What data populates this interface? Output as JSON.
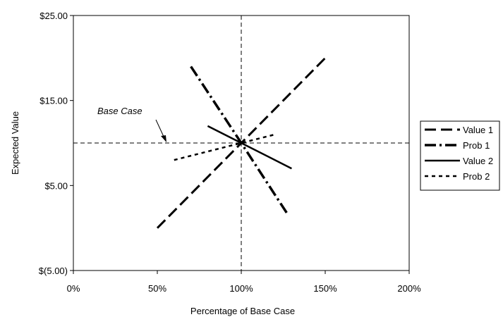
{
  "chart_data": {
    "type": "line",
    "xlabel": "Percentage of Base Case",
    "ylabel": "Expected Value",
    "xlim": [
      0,
      200
    ],
    "ylim": [
      -5,
      25
    ],
    "x_ticks": [
      0,
      50,
      100,
      150,
      200
    ],
    "x_tick_labels": [
      "0%",
      "50%",
      "100%",
      "150%",
      "200%"
    ],
    "y_ticks": [
      -5,
      5,
      15,
      25
    ],
    "y_tick_labels": [
      "$(5.00)",
      "$5.00",
      "$15.00",
      "$25.00"
    ],
    "grid": false,
    "legend_position": "right",
    "reference_lines": {
      "x": 100,
      "y": 10
    },
    "annotation": {
      "text": "Base Case",
      "points_to": [
        100,
        10
      ]
    },
    "series": [
      {
        "name": "Value 1",
        "style": "dashed",
        "x": [
          50,
          100,
          150
        ],
        "y": [
          0,
          10,
          20
        ]
      },
      {
        "name": "Prob 1",
        "style": "dash-dot",
        "x": [
          70,
          100,
          128
        ],
        "y": [
          19,
          10,
          1.5
        ]
      },
      {
        "name": "Value 2",
        "style": "solid",
        "x": [
          80,
          100,
          130
        ],
        "y": [
          12,
          10,
          7
        ]
      },
      {
        "name": "Prob 2",
        "style": "dotted",
        "x": [
          60,
          100,
          120
        ],
        "y": [
          8,
          10,
          11
        ]
      }
    ]
  }
}
